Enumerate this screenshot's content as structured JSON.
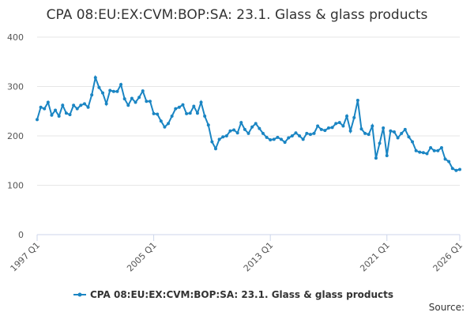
{
  "chart_data": {
    "type": "line",
    "title": "CPA 08:EU:EX:CVM:BOP:SA: 23.1. Glass & glass products",
    "source": "Source:",
    "categories": [
      "1997 Q1",
      null,
      null,
      null,
      null,
      null,
      null,
      null,
      null,
      null,
      null,
      null,
      null,
      null,
      null,
      null,
      null,
      null,
      null,
      null,
      null,
      null,
      null,
      null,
      null,
      null,
      null,
      null,
      null,
      null,
      null,
      null,
      "2005 Q1",
      null,
      null,
      null,
      null,
      null,
      null,
      null,
      null,
      null,
      null,
      null,
      null,
      null,
      null,
      null,
      null,
      null,
      null,
      null,
      null,
      null,
      null,
      null,
      null,
      null,
      null,
      null,
      null,
      null,
      null,
      null,
      "2013 Q1",
      null,
      null,
      null,
      null,
      null,
      null,
      null,
      null,
      null,
      null,
      null,
      null,
      null,
      null,
      null,
      null,
      null,
      null,
      null,
      null,
      null,
      null,
      null,
      null,
      null,
      null,
      null,
      null,
      null,
      null,
      null,
      "2021 Q1",
      null,
      null,
      null,
      null,
      null,
      null,
      null,
      null,
      null,
      null,
      null,
      null,
      null,
      null,
      null,
      null,
      null,
      null,
      null,
      "2026 Q1"
    ],
    "series": [
      {
        "name": "CPA 08:EU:EX:CVM:BOP:SA: 23.1. Glass & glass products",
        "color": "#1a85c3",
        "values": [
          233,
          258,
          255,
          268,
          242,
          252,
          240,
          262,
          246,
          243,
          262,
          255,
          262,
          265,
          258,
          283,
          318,
          298,
          287,
          265,
          292,
          290,
          290,
          304,
          275,
          262,
          276,
          268,
          278,
          291,
          270,
          270,
          245,
          244,
          230,
          218,
          225,
          240,
          255,
          258,
          263,
          245,
          246,
          260,
          246,
          268,
          240,
          222,
          188,
          174,
          193,
          198,
          200,
          210,
          212,
          206,
          227,
          213,
          205,
          218,
          225,
          215,
          205,
          197,
          192,
          193,
          197,
          193,
          187,
          196,
          200,
          206,
          200,
          193,
          205,
          203,
          205,
          220,
          213,
          211,
          216,
          217,
          225,
          227,
          220,
          240,
          210,
          237,
          272,
          214,
          205,
          203,
          220,
          155,
          185,
          216,
          160,
          210,
          208,
          196,
          205,
          213,
          198,
          188,
          170,
          167,
          166,
          164,
          176,
          170,
          170,
          176,
          153,
          148,
          134,
          130,
          132
        ]
      }
    ],
    "ylim": [
      0,
      400
    ],
    "yticks": [
      0,
      100,
      200,
      300,
      400
    ],
    "grid": true
  }
}
